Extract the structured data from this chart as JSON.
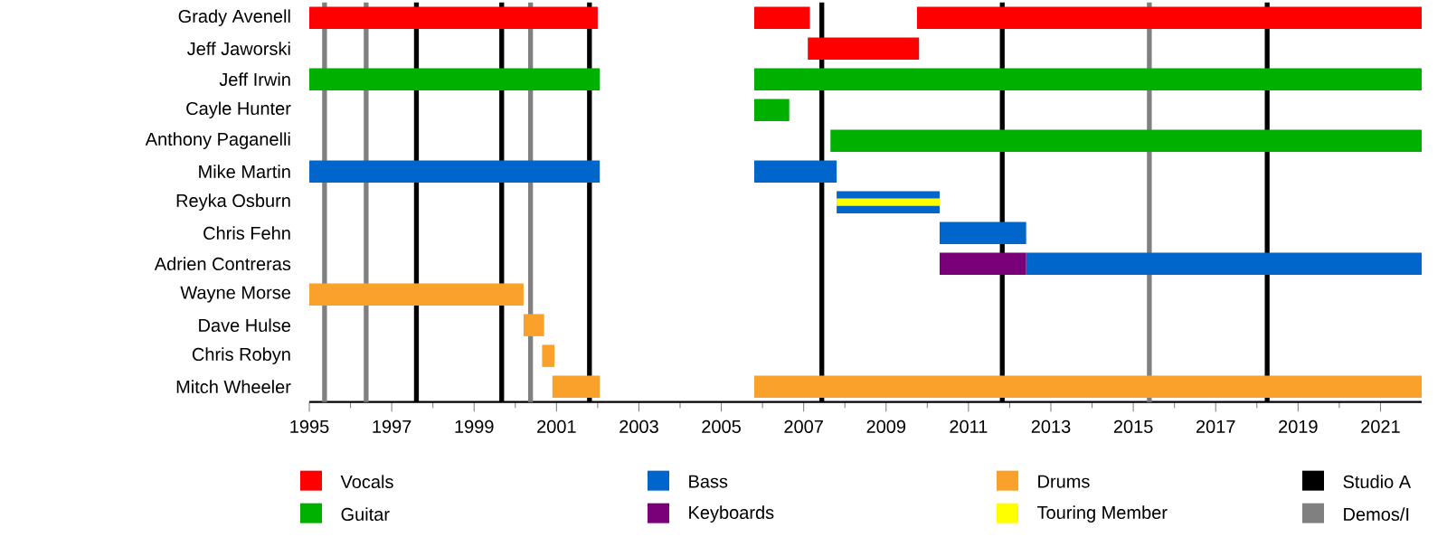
{
  "chart_data": {
    "type": "bar",
    "orientation": "horizontal",
    "legend": "bottom",
    "categories": [
      "Grady Avenell",
      "Jeff Jaworski",
      "Jeff Irwin",
      "Cayle Hunter",
      "Anthony Paganelli",
      "Mike Martin",
      "Reyka Osburn",
      "Chris Fehn",
      "Adrien Contreras",
      "Wayne Morse",
      "Dave Hulse",
      "Chris Robyn",
      "Mitch Wheeler"
    ],
    "xlim": [
      1995,
      2022
    ],
    "xticks": [
      1995,
      1997,
      1999,
      2001,
      2003,
      2005,
      2007,
      2009,
      2011,
      2013,
      2015,
      2017,
      2019,
      2021
    ],
    "series": [
      {
        "name": "Vocals",
        "color": "#ff0000",
        "base": [
          1995,
          2007.1,
          null,
          null,
          null,
          null,
          null,
          null,
          null,
          null,
          null,
          null,
          null
        ],
        "values": [
          7.0,
          2.7,
          null,
          null,
          null,
          null,
          null,
          null,
          null,
          null,
          null,
          null,
          null
        ]
      },
      {
        "color": "#ff0000",
        "base": [
          2005.8,
          null,
          null,
          null,
          null,
          null,
          null,
          null,
          null,
          null,
          null,
          null,
          null
        ],
        "values": [
          1.35,
          null,
          null,
          null,
          null,
          null,
          null,
          null,
          null,
          null,
          null,
          null,
          null
        ]
      },
      {
        "color": "#ff0000",
        "base": [
          2009.75,
          null,
          null,
          null,
          null,
          null,
          null,
          null,
          null,
          null,
          null,
          null,
          null
        ],
        "values": [
          12.25,
          null,
          null,
          null,
          null,
          null,
          null,
          null,
          null,
          null,
          null,
          null,
          null
        ]
      },
      {
        "name": "Guitar",
        "color": "#00b000",
        "base": [
          null,
          null,
          1995,
          2005.8,
          2007.65,
          null,
          null,
          null,
          null,
          null,
          null,
          null,
          null
        ],
        "values": [
          null,
          null,
          7.05,
          0.85,
          14.35,
          null,
          null,
          null,
          null,
          null,
          null,
          null,
          null
        ]
      },
      {
        "color": "#00b000",
        "base": [
          null,
          null,
          2005.8,
          null,
          null,
          null,
          null,
          null,
          null,
          null,
          null,
          null,
          null
        ],
        "values": [
          null,
          null,
          16.2,
          null,
          null,
          null,
          null,
          null,
          null,
          null,
          null,
          null,
          null
        ]
      },
      {
        "name": "Bass",
        "color": "#0066cc",
        "base": [
          null,
          null,
          null,
          null,
          null,
          1995,
          2007.8,
          2010.3,
          2012.4,
          null,
          null,
          null,
          null
        ],
        "values": [
          null,
          null,
          null,
          null,
          null,
          7.05,
          2.5,
          2.1,
          9.6,
          null,
          null,
          null,
          null
        ]
      },
      {
        "color": "#0066cc",
        "base": [
          null,
          null,
          null,
          null,
          null,
          2005.8,
          null,
          null,
          null,
          null,
          null,
          null,
          null
        ],
        "values": [
          null,
          null,
          null,
          null,
          null,
          2.0,
          null,
          null,
          null,
          null,
          null,
          null,
          null
        ]
      },
      {
        "name": "Keyboards",
        "color": "#7a007a",
        "base": [
          null,
          null,
          null,
          null,
          null,
          null,
          null,
          null,
          2010.3,
          null,
          null,
          null,
          null
        ],
        "values": [
          null,
          null,
          null,
          null,
          null,
          null,
          null,
          null,
          2.1,
          null,
          null,
          null,
          null
        ]
      },
      {
        "name": "Drums",
        "color": "#f9a12a",
        "base": [
          null,
          null,
          null,
          null,
          null,
          null,
          null,
          null,
          null,
          1995,
          2000.2,
          2000.65,
          2000.9
        ],
        "values": [
          null,
          null,
          null,
          null,
          null,
          null,
          null,
          null,
          null,
          5.2,
          0.5,
          0.3,
          1.15
        ]
      },
      {
        "color": "#f9a12a",
        "base": [
          null,
          null,
          null,
          null,
          null,
          null,
          null,
          null,
          null,
          null,
          null,
          null,
          2005.8
        ],
        "values": [
          null,
          null,
          null,
          null,
          null,
          null,
          null,
          null,
          null,
          null,
          null,
          null,
          16.2
        ]
      },
      {
        "name": "Touring Member",
        "color": "#ffff00",
        "base": [
          null,
          null,
          null,
          null,
          null,
          null,
          2007.8,
          null,
          null,
          null,
          null,
          null,
          null
        ],
        "values": [
          null,
          null,
          null,
          null,
          null,
          null,
          2.5,
          null,
          null,
          null,
          null,
          null,
          null
        ]
      }
    ],
    "ref_lines": [
      {
        "axis": "x",
        "value": 1997.6,
        "color": "#000000",
        "label": "Studio A"
      },
      {
        "axis": "x",
        "value": 1999.67,
        "color": "#000000"
      },
      {
        "axis": "x",
        "value": 2001.8,
        "color": "#000000"
      },
      {
        "axis": "x",
        "value": 2007.44,
        "color": "#000000"
      },
      {
        "axis": "x",
        "value": 2011.82,
        "color": "#000000"
      },
      {
        "axis": "x",
        "value": 2018.25,
        "color": "#000000"
      },
      {
        "axis": "x",
        "value": 1995.37,
        "color": "#808080",
        "label": "Demos/I"
      },
      {
        "axis": "x",
        "value": 1996.38,
        "color": "#808080"
      },
      {
        "axis": "x",
        "value": 2000.37,
        "color": "#808080"
      },
      {
        "axis": "x",
        "value": 2015.39,
        "color": "#808080"
      }
    ]
  }
}
